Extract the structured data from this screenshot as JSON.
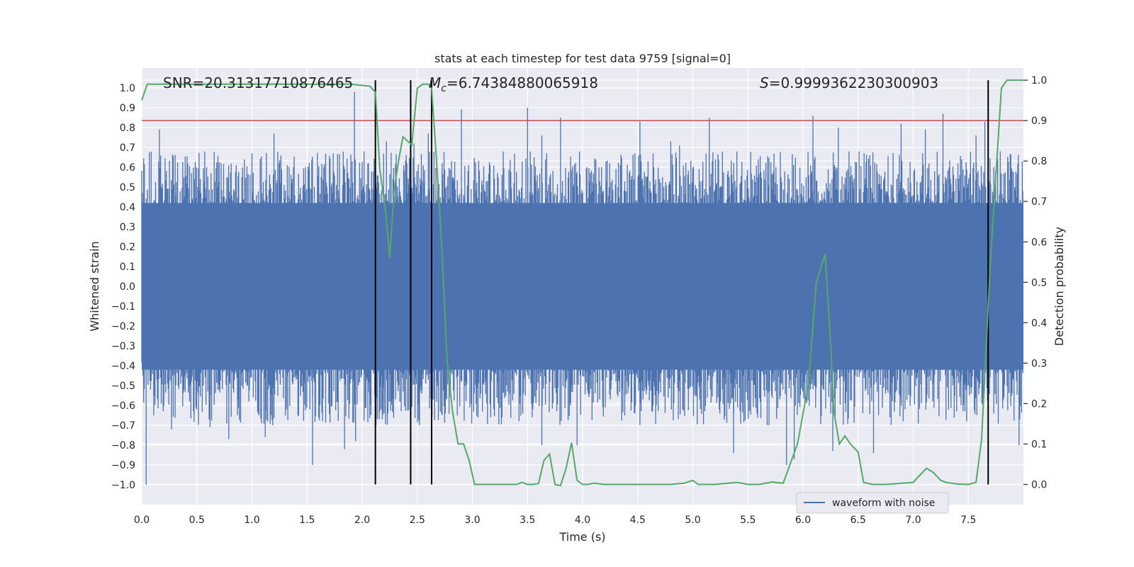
{
  "chart_data": {
    "type": "line",
    "title": "stats at each timestep for test data 9759 [signal=0]",
    "xlabel": "Time (s)",
    "ylabel": "Whitened strain",
    "y2label": "Detection probability",
    "xlim": [
      0,
      8.0
    ],
    "ylim": [
      -1.1,
      1.1
    ],
    "y2lim": [
      -0.05,
      1.03
    ],
    "xticks": [
      0.0,
      0.5,
      1.0,
      1.5,
      2.0,
      2.5,
      3.0,
      3.5,
      4.0,
      4.5,
      5.0,
      5.5,
      6.0,
      6.5,
      7.0,
      7.5
    ],
    "xtick_labels": [
      "0.0",
      "0.5",
      "1.0",
      "1.5",
      "2.0",
      "2.5",
      "3.0",
      "3.5",
      "4.0",
      "4.5",
      "5.0",
      "5.5",
      "6.0",
      "6.5",
      "7.0",
      "7.5"
    ],
    "yticks": [
      1.0,
      0.9,
      0.8,
      0.7,
      0.6,
      0.5,
      0.4,
      0.3,
      0.2,
      0.1,
      0.0,
      -0.1,
      -0.2,
      -0.3,
      -0.4,
      -0.5,
      -0.6,
      -0.7,
      -0.8,
      -0.9,
      -1.0
    ],
    "ytick_labels": [
      "1.0",
      "0.9",
      "0.8",
      "0.7",
      "0.6",
      "0.5",
      "0.4",
      "0.3",
      "0.2",
      "0.1",
      "0.0",
      "−0.1",
      "−0.2",
      "−0.3",
      "−0.4",
      "−0.5",
      "−0.6",
      "−0.7",
      "−0.8",
      "−0.9",
      "−1.0"
    ],
    "y2ticks": [
      1.0,
      0.9,
      0.8,
      0.7,
      0.6,
      0.5,
      0.4,
      0.3,
      0.2,
      0.1,
      0.0
    ],
    "y2tick_labels": [
      "1.0",
      "0.9",
      "0.8",
      "0.7",
      "0.6",
      "0.5",
      "0.4",
      "0.3",
      "0.2",
      "0.1",
      "0.0"
    ],
    "grid": true,
    "threshold": {
      "value": 0.9,
      "axis": "y2",
      "color": "#c44e52"
    },
    "vertical_lines": [
      2.12,
      2.44,
      2.63,
      7.68
    ],
    "waveform": {
      "name": "waveform with noise",
      "color": "#4c72b0",
      "core_amplitude": 0.42,
      "peaks_positive": [
        [
          0.16,
          0.79
        ],
        [
          1.2,
          0.77
        ],
        [
          1.93,
          0.98
        ],
        [
          2.22,
          0.73
        ],
        [
          2.47,
          0.72
        ],
        [
          2.6,
          0.77
        ],
        [
          2.9,
          0.89
        ],
        [
          3.5,
          0.9
        ],
        [
          3.63,
          0.76
        ],
        [
          3.8,
          0.85
        ],
        [
          4.52,
          0.83
        ],
        [
          4.8,
          0.73
        ],
        [
          4.88,
          0.71
        ],
        [
          5.15,
          0.85
        ],
        [
          6.09,
          0.86
        ],
        [
          6.32,
          0.8
        ],
        [
          6.89,
          0.82
        ],
        [
          7.11,
          0.79
        ],
        [
          7.27,
          0.87
        ],
        [
          7.57,
          0.76
        ],
        [
          7.65,
          0.83
        ],
        [
          7.79,
          0.68
        ],
        [
          7.99,
          0.63
        ]
      ],
      "peaks_negative": [
        [
          0.04,
          -1.0
        ],
        [
          0.27,
          -0.72
        ],
        [
          0.62,
          -0.71
        ],
        [
          0.79,
          -0.77
        ],
        [
          1.12,
          -0.76
        ],
        [
          1.55,
          -0.9
        ],
        [
          1.84,
          -0.82
        ],
        [
          1.94,
          -0.78
        ],
        [
          3.63,
          -0.8
        ],
        [
          3.95,
          -0.8
        ],
        [
          5.37,
          -0.84
        ],
        [
          5.85,
          -0.9
        ],
        [
          5.92,
          -0.87
        ],
        [
          6.27,
          -0.83
        ],
        [
          6.64,
          -0.84
        ],
        [
          7.96,
          -0.8
        ]
      ]
    },
    "probability": {
      "name": "Detection probability",
      "color": "#55a868",
      "x": [
        0.0,
        0.05,
        0.1,
        0.3,
        0.6,
        1.0,
        1.5,
        1.9,
        2.07,
        2.12,
        2.16,
        2.21,
        2.25,
        2.29,
        2.33,
        2.37,
        2.41,
        2.45,
        2.5,
        2.55,
        2.6,
        2.63,
        2.67,
        2.72,
        2.77,
        2.82,
        2.87,
        2.92,
        2.97,
        3.02,
        3.2,
        3.4,
        3.45,
        3.5,
        3.55,
        3.6,
        3.65,
        3.7,
        3.75,
        3.8,
        3.85,
        3.9,
        3.95,
        4.0,
        4.05,
        4.1,
        4.2,
        4.3,
        4.5,
        4.8,
        4.92,
        5.0,
        5.05,
        5.2,
        5.4,
        5.5,
        5.6,
        5.72,
        5.82,
        5.95,
        6.05,
        6.12,
        6.2,
        6.25,
        6.28,
        6.33,
        6.38,
        6.43,
        6.5,
        6.55,
        6.63,
        6.75,
        6.9,
        7.0,
        7.05,
        7.12,
        7.18,
        7.25,
        7.3,
        7.4,
        7.5,
        7.57,
        7.62,
        7.7,
        7.8,
        7.85,
        7.93,
        8.0
      ],
      "values": [
        0.95,
        0.99,
        0.99,
        0.99,
        0.99,
        0.99,
        0.99,
        0.99,
        0.985,
        0.97,
        0.78,
        0.68,
        0.56,
        0.73,
        0.8,
        0.86,
        0.85,
        0.84,
        0.98,
        0.99,
        0.99,
        0.98,
        0.82,
        0.6,
        0.31,
        0.18,
        0.1,
        0.1,
        0.06,
        0.0,
        0.0,
        0.0,
        0.005,
        0.0,
        0.0,
        0.002,
        0.06,
        0.075,
        0.0,
        -0.003,
        0.04,
        0.103,
        0.01,
        0.0,
        0.0,
        0.003,
        0.0,
        0.0,
        0.0,
        0.0,
        0.003,
        0.01,
        0.0,
        0.0,
        0.005,
        0.0,
        0.0,
        0.006,
        0.003,
        0.1,
        0.25,
        0.5,
        0.57,
        0.35,
        0.18,
        0.1,
        0.12,
        0.1,
        0.08,
        0.005,
        0.0,
        0.0,
        0.003,
        0.005,
        0.02,
        0.04,
        0.03,
        0.01,
        0.005,
        0.001,
        0.0,
        0.005,
        0.11,
        0.55,
        0.98,
        1.0,
        1.0,
        1.0
      ]
    },
    "annotations": {
      "snr": "SNR=20.31317710876465",
      "mc_symbol": "M",
      "mc_sub": "c",
      "mc_value": "=6.74384880065918",
      "s_symbol": "S",
      "s_value": "=0.9999362230300903"
    },
    "legend": {
      "label": "waveform with noise",
      "position": "lower-right"
    }
  }
}
